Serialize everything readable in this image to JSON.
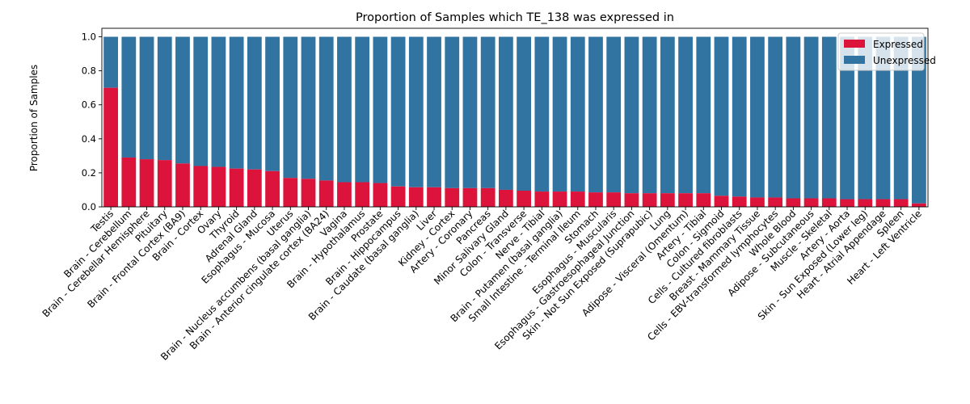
{
  "chart_data": {
    "type": "bar",
    "stacked": true,
    "title": "Proportion of Samples which TE_138 was expressed in",
    "xlabel": "",
    "ylabel": "Proportion of Samples",
    "ylim": [
      0,
      1.05
    ],
    "yticks": [
      "0.0",
      "0.2",
      "0.4",
      "0.6",
      "0.8",
      "1.0"
    ],
    "legend_placement": "top-right",
    "categories": [
      "Testis",
      "Brain - Cerebellum",
      "Brain - Cerebellar Hemisphere",
      "Pituitary",
      "Brain - Frontal Cortex (BA9)",
      "Brain - Cortex",
      "Ovary",
      "Thyroid",
      "Adrenal Gland",
      "Esophagus - Mucosa",
      "Uterus",
      "Brain - Nucleus accumbens (basal ganglia)",
      "Brain - Anterior cingulate cortex (BA24)",
      "Vagina",
      "Brain - Hypothalamus",
      "Prostate",
      "Brain - Hippocampus",
      "Brain - Caudate (basal ganglia)",
      "Liver",
      "Kidney - Cortex",
      "Artery - Coronary",
      "Pancreas",
      "Minor Salivary Gland",
      "Colon - Transverse",
      "Nerve - Tibial",
      "Brain - Putamen (basal ganglia)",
      "Small Intestine - Terminal Ileum",
      "Stomach",
      "Esophagus - Muscularis",
      "Esophagus - Gastroesophageal Junction",
      "Skin - Not Sun Exposed (Suprapubic)",
      "Lung",
      "Adipose - Visceral (Omentum)",
      "Artery - Tibial",
      "Colon - Sigmoid",
      "Cells - Cultured fibroblasts",
      "Breast - Mammary Tissue",
      "Cells - EBV-transformed lymphocytes",
      "Whole Blood",
      "Adipose - Subcutaneous",
      "Muscle - Skeletal",
      "Artery - Aorta",
      "Skin - Sun Exposed (Lower leg)",
      "Heart - Atrial Appendage",
      "Spleen",
      "Heart - Left Ventricle"
    ],
    "series": [
      {
        "name": "Expressed",
        "color": "#dc143c",
        "values": [
          0.7,
          0.29,
          0.28,
          0.275,
          0.255,
          0.24,
          0.235,
          0.225,
          0.22,
          0.21,
          0.17,
          0.165,
          0.155,
          0.145,
          0.145,
          0.14,
          0.12,
          0.115,
          0.115,
          0.11,
          0.11,
          0.11,
          0.1,
          0.095,
          0.09,
          0.09,
          0.09,
          0.085,
          0.085,
          0.08,
          0.08,
          0.08,
          0.08,
          0.08,
          0.065,
          0.06,
          0.055,
          0.055,
          0.05,
          0.05,
          0.05,
          0.045,
          0.045,
          0.045,
          0.045,
          0.02
        ]
      },
      {
        "name": "Unexpressed",
        "color": "#3274a1",
        "values": [
          0.3,
          0.71,
          0.72,
          0.725,
          0.745,
          0.76,
          0.765,
          0.775,
          0.78,
          0.79,
          0.83,
          0.835,
          0.845,
          0.855,
          0.855,
          0.86,
          0.88,
          0.885,
          0.885,
          0.89,
          0.89,
          0.89,
          0.9,
          0.905,
          0.91,
          0.91,
          0.91,
          0.915,
          0.915,
          0.92,
          0.92,
          0.92,
          0.92,
          0.92,
          0.935,
          0.94,
          0.945,
          0.945,
          0.95,
          0.95,
          0.95,
          0.955,
          0.955,
          0.955,
          0.955,
          0.98
        ]
      }
    ]
  }
}
